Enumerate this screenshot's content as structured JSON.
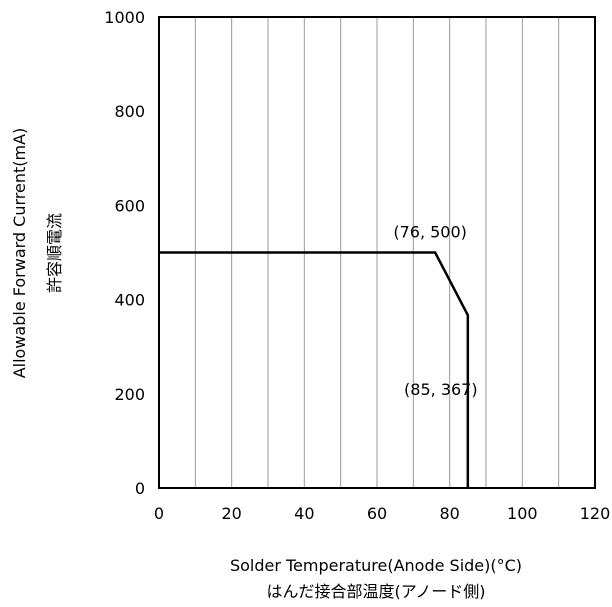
{
  "chart_data": {
    "type": "line",
    "title": "",
    "xlabel": "Solder Temperature(Anode Side)(°C)",
    "xlabel_jp": "はんだ接合部温度(アノード側)",
    "ylabel": "Allowable Forward Current(mA)",
    "ylabel_jp": "許容順電流",
    "xlim": [
      0,
      120
    ],
    "ylim": [
      0,
      1000
    ],
    "xticks": [
      0,
      20,
      40,
      60,
      80,
      100,
      120
    ],
    "yticks": [
      0,
      200,
      400,
      600,
      800,
      1000
    ],
    "x_grid_step": 10,
    "grid": true,
    "series": [
      {
        "x": [
          0,
          76,
          85,
          85
        ],
        "y": [
          500,
          500,
          367,
          0
        ]
      }
    ],
    "annotations": [
      {
        "text": "(76, 500)",
        "x": 76,
        "y": 500
      },
      {
        "text": "(85, 367)",
        "x": 85,
        "y": 367
      }
    ]
  }
}
